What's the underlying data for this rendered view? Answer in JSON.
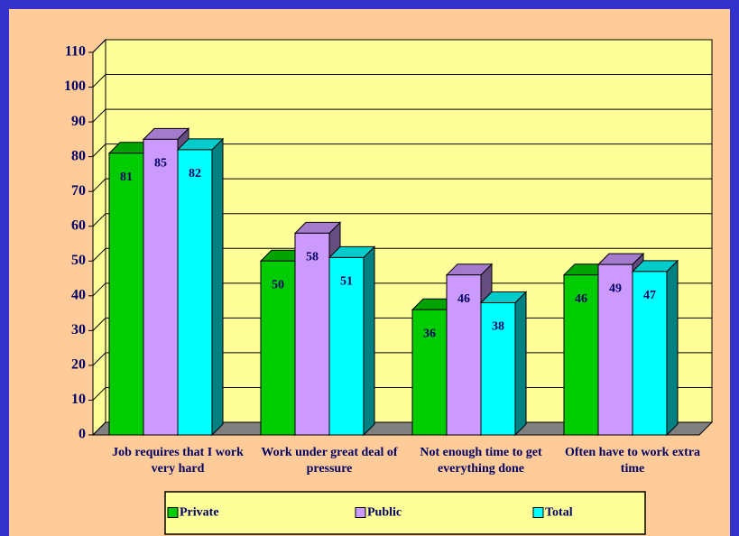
{
  "chart_data": {
    "type": "bar3d",
    "categories": [
      "Job requires that I work very hard",
      "Work under great deal of pressure",
      "Not enough time to get everything done",
      "Often have to work extra time"
    ],
    "series": [
      {
        "name": "Private",
        "color": "#00cc00",
        "values": [
          81,
          50,
          36,
          46
        ]
      },
      {
        "name": "Public",
        "color": "#cc99ff",
        "values": [
          85,
          58,
          46,
          49
        ]
      },
      {
        "name": "Total",
        "color": "#00ffff",
        "values": [
          82,
          51,
          38,
          47
        ]
      }
    ],
    "ylim": [
      0,
      110
    ],
    "yticks": [
      0,
      10,
      20,
      30,
      40,
      50,
      60,
      70,
      80,
      90,
      100,
      110
    ],
    "grid": true,
    "legend": "bottom"
  }
}
